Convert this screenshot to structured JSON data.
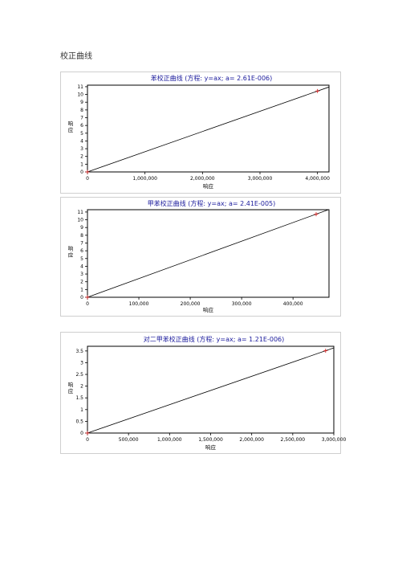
{
  "page": {
    "heading": "校正曲线"
  },
  "chart_data": [
    {
      "type": "line",
      "title": "苯校正曲线 (方程: y=ax; a= 2.61E-006)",
      "xlabel": "响应",
      "ylabel": "响应",
      "xlim": [
        0,
        4200000
      ],
      "ylim": [
        0,
        11.2
      ],
      "xticks": [
        0,
        1000000,
        2000000,
        3000000,
        4000000
      ],
      "xtick_labels": [
        "0",
        "1,000,000",
        "2,000,000",
        "3,000,000",
        "4,000,000"
      ],
      "yticks": [
        0,
        1,
        2,
        3,
        4,
        5,
        6,
        7,
        8,
        9,
        10,
        11
      ],
      "ytick_labels": [
        "0",
        "1",
        "2",
        "3",
        "4",
        "5",
        "6",
        "7",
        "8",
        "9",
        "10",
        "11"
      ],
      "series": [
        {
          "x": [
            0,
            4200000
          ],
          "y": [
            0,
            10.96
          ],
          "color": "#000000"
        }
      ],
      "points": {
        "x": [
          0,
          4000000
        ],
        "y": [
          0,
          10.44
        ],
        "color": "#d42020"
      }
    },
    {
      "type": "line",
      "title": "甲苯校正曲线 (方程: y=ax; a= 2.41E-005)",
      "xlabel": "响应",
      "ylabel": "响应",
      "xlim": [
        0,
        470000
      ],
      "ylim": [
        0,
        11.3
      ],
      "xticks": [
        0,
        100000,
        200000,
        300000,
        400000
      ],
      "xtick_labels": [
        "0",
        "100,000",
        "200,000",
        "300,000",
        "400,000"
      ],
      "yticks": [
        0,
        1,
        2,
        3,
        4,
        5,
        6,
        7,
        8,
        9,
        10,
        11
      ],
      "ytick_labels": [
        "0",
        "1",
        "2",
        "3",
        "4",
        "5",
        "6",
        "7",
        "8",
        "9",
        "10",
        "11"
      ],
      "series": [
        {
          "x": [
            0,
            470000
          ],
          "y": [
            0,
            11.33
          ],
          "color": "#000000"
        }
      ],
      "points": {
        "x": [
          0,
          445000
        ],
        "y": [
          0,
          10.72
        ],
        "color": "#d42020"
      }
    },
    {
      "type": "line",
      "title": "对二甲苯校正曲线 (方程: y=ax; a= 1.21E-006)",
      "xlabel": "响应",
      "ylabel": "响应",
      "xlim": [
        0,
        3000000
      ],
      "ylim": [
        0,
        3.7
      ],
      "xticks": [
        0,
        500000,
        1000000,
        1500000,
        2000000,
        2500000,
        3000000
      ],
      "xtick_labels": [
        "0",
        "500,000",
        "1,000,000",
        "1,500,000",
        "2,000,000",
        "2,500,000",
        "3,000,000"
      ],
      "yticks": [
        0,
        0.5,
        1,
        1.5,
        2,
        2.5,
        3,
        3.5
      ],
      "ytick_labels": [
        "0",
        "0.5",
        "1",
        "1.5",
        "2",
        "2.5",
        "3",
        "3.5"
      ],
      "series": [
        {
          "x": [
            0,
            3000000
          ],
          "y": [
            0,
            3.63
          ],
          "color": "#000000"
        }
      ],
      "points": {
        "x": [
          0,
          2900000
        ],
        "y": [
          0,
          3.51
        ],
        "color": "#d42020"
      }
    }
  ]
}
